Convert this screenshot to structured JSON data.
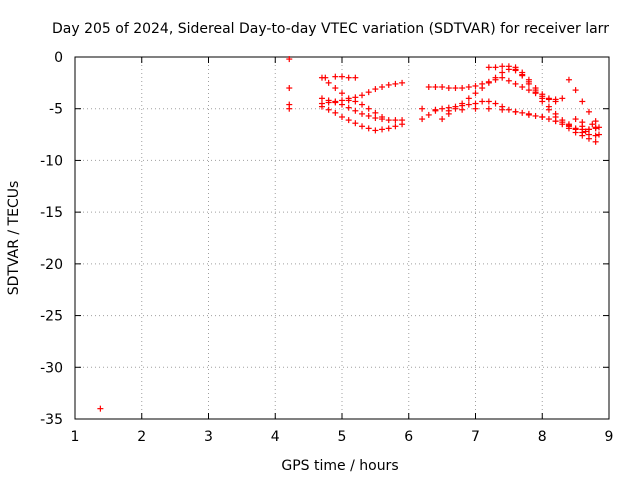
{
  "chart_data": {
    "type": "scatter",
    "title": "Day 205 of 2024, Sidereal Day-to-day VTEC variation (SDTVAR) for receiver larr",
    "xlabel": "GPS time / hours",
    "ylabel": "SDTVAR / TECUs",
    "xlim": [
      1,
      9
    ],
    "ylim": [
      -35,
      0
    ],
    "xticks": [
      1,
      2,
      3,
      4,
      5,
      6,
      7,
      8,
      9
    ],
    "yticks": [
      0,
      -5,
      -10,
      -15,
      -20,
      -25,
      -30,
      -35
    ],
    "grid": true,
    "marker": "+",
    "color": "#ff0000",
    "series": [
      {
        "points": [
          [
            1.38,
            -34.0
          ],
          [
            4.21,
            -0.2
          ],
          [
            4.21,
            -3.0
          ],
          [
            4.21,
            -4.6
          ],
          [
            4.21,
            -5.0
          ],
          [
            4.7,
            -2.0
          ],
          [
            4.8,
            -2.5
          ],
          [
            4.9,
            -3.0
          ],
          [
            5.0,
            -3.5
          ],
          [
            5.1,
            -4.0
          ],
          [
            5.2,
            -3.9
          ],
          [
            5.3,
            -3.7
          ],
          [
            5.4,
            -3.4
          ],
          [
            5.5,
            -3.1
          ],
          [
            5.6,
            -2.9
          ],
          [
            5.7,
            -2.7
          ],
          [
            5.8,
            -2.6
          ],
          [
            5.9,
            -2.5
          ],
          [
            4.75,
            -2.0
          ],
          [
            4.9,
            -1.9
          ],
          [
            5.0,
            -1.9
          ],
          [
            5.1,
            -2.0
          ],
          [
            5.2,
            -2.0
          ],
          [
            4.7,
            -4.0
          ],
          [
            4.8,
            -4.2
          ],
          [
            4.9,
            -4.4
          ],
          [
            5.0,
            -4.6
          ],
          [
            5.1,
            -4.9
          ],
          [
            5.2,
            -5.2
          ],
          [
            5.3,
            -5.5
          ],
          [
            5.4,
            -5.7
          ],
          [
            5.5,
            -5.9
          ],
          [
            5.6,
            -6.0
          ],
          [
            5.7,
            -6.1
          ],
          [
            5.8,
            -6.1
          ],
          [
            5.9,
            -6.1
          ],
          [
            4.7,
            -4.8
          ],
          [
            4.8,
            -5.1
          ],
          [
            4.9,
            -5.4
          ],
          [
            5.0,
            -5.8
          ],
          [
            5.1,
            -6.1
          ],
          [
            5.2,
            -6.4
          ],
          [
            5.3,
            -6.7
          ],
          [
            5.4,
            -6.9
          ],
          [
            5.5,
            -7.1
          ],
          [
            5.6,
            -7.0
          ],
          [
            5.7,
            -6.9
          ],
          [
            5.8,
            -6.7
          ],
          [
            5.9,
            -6.5
          ],
          [
            4.7,
            -4.5
          ],
          [
            4.8,
            -4.4
          ],
          [
            4.9,
            -4.3
          ],
          [
            5.0,
            -4.2
          ],
          [
            5.1,
            -4.2
          ],
          [
            5.2,
            -4.3
          ],
          [
            5.3,
            -4.6
          ],
          [
            5.4,
            -5.0
          ],
          [
            5.5,
            -5.4
          ],
          [
            5.6,
            -5.8
          ],
          [
            6.2,
            -6.0
          ],
          [
            6.3,
            -5.6
          ],
          [
            6.4,
            -5.2
          ],
          [
            6.5,
            -5.0
          ],
          [
            6.6,
            -4.9
          ],
          [
            6.7,
            -4.8
          ],
          [
            6.8,
            -4.7
          ],
          [
            6.9,
            -4.6
          ],
          [
            7.0,
            -4.5
          ],
          [
            7.1,
            -4.3
          ],
          [
            7.2,
            -4.3
          ],
          [
            7.3,
            -4.5
          ],
          [
            7.4,
            -4.8
          ],
          [
            7.5,
            -5.1
          ],
          [
            7.6,
            -5.3
          ],
          [
            7.7,
            -5.4
          ],
          [
            7.8,
            -5.6
          ],
          [
            7.9,
            -5.7
          ],
          [
            8.0,
            -5.8
          ],
          [
            8.1,
            -6.0
          ],
          [
            8.2,
            -6.2
          ],
          [
            8.3,
            -6.5
          ],
          [
            8.4,
            -6.9
          ],
          [
            8.5,
            -7.3
          ],
          [
            8.6,
            -7.6
          ],
          [
            8.7,
            -7.9
          ],
          [
            8.8,
            -8.2
          ],
          [
            6.2,
            -5.0
          ],
          [
            6.4,
            -5.1
          ],
          [
            6.6,
            -5.2
          ],
          [
            6.8,
            -5.1
          ],
          [
            7.0,
            -5.0
          ],
          [
            7.2,
            -5.0
          ],
          [
            7.4,
            -5.1
          ],
          [
            7.6,
            -5.3
          ],
          [
            7.8,
            -5.5
          ],
          [
            8.0,
            -5.8
          ],
          [
            8.2,
            -6.2
          ],
          [
            8.4,
            -6.5
          ],
          [
            8.6,
            -6.7
          ],
          [
            8.8,
            -6.8
          ],
          [
            6.3,
            -2.9
          ],
          [
            6.4,
            -2.9
          ],
          [
            6.5,
            -2.9
          ],
          [
            6.6,
            -3.0
          ],
          [
            6.7,
            -3.0
          ],
          [
            6.8,
            -3.0
          ],
          [
            6.9,
            -2.9
          ],
          [
            7.0,
            -2.8
          ],
          [
            7.1,
            -2.6
          ],
          [
            7.2,
            -2.4
          ],
          [
            7.3,
            -2.2
          ],
          [
            7.4,
            -2.0
          ],
          [
            7.5,
            -2.3
          ],
          [
            7.6,
            -2.6
          ],
          [
            7.7,
            -2.9
          ],
          [
            7.8,
            -3.2
          ],
          [
            7.9,
            -3.5
          ],
          [
            8.0,
            -3.8
          ],
          [
            8.1,
            -4.0
          ],
          [
            8.2,
            -4.1
          ],
          [
            8.3,
            -4.0
          ],
          [
            6.5,
            -6.0
          ],
          [
            6.6,
            -5.5
          ],
          [
            6.7,
            -5.0
          ],
          [
            6.8,
            -4.5
          ],
          [
            6.9,
            -4.0
          ],
          [
            7.0,
            -3.5
          ],
          [
            7.1,
            -3.0
          ],
          [
            7.2,
            -2.5
          ],
          [
            7.3,
            -2.0
          ],
          [
            7.4,
            -1.5
          ],
          [
            7.5,
            -1.2
          ],
          [
            7.6,
            -1.3
          ],
          [
            7.7,
            -1.7
          ],
          [
            7.8,
            -2.4
          ],
          [
            7.9,
            -3.2
          ],
          [
            8.0,
            -4.0
          ],
          [
            8.1,
            -4.8
          ],
          [
            8.2,
            -5.5
          ],
          [
            8.3,
            -6.1
          ],
          [
            8.4,
            -6.6
          ],
          [
            8.5,
            -7.0
          ],
          [
            8.6,
            -7.3
          ],
          [
            8.7,
            -7.5
          ],
          [
            8.8,
            -7.6
          ],
          [
            7.2,
            -1.0
          ],
          [
            7.3,
            -1.0
          ],
          [
            7.4,
            -0.9
          ],
          [
            7.5,
            -0.9
          ],
          [
            7.6,
            -1.0
          ],
          [
            7.7,
            -1.5
          ],
          [
            7.8,
            -2.2
          ],
          [
            7.9,
            -3.0
          ],
          [
            8.0,
            -3.6
          ],
          [
            8.1,
            -4.1
          ],
          [
            8.2,
            -4.3
          ],
          [
            7.6,
            -1.2
          ],
          [
            7.7,
            -1.8
          ],
          [
            7.8,
            -2.6
          ],
          [
            7.9,
            -3.4
          ],
          [
            8.0,
            -4.3
          ],
          [
            8.1,
            -5.1
          ],
          [
            8.2,
            -5.8
          ],
          [
            8.3,
            -6.3
          ],
          [
            8.4,
            -6.7
          ],
          [
            8.5,
            -6.9
          ],
          [
            8.6,
            -7.0
          ],
          [
            8.7,
            -7.0
          ],
          [
            8.8,
            -6.9
          ],
          [
            8.4,
            -2.2
          ],
          [
            8.5,
            -3.2
          ],
          [
            8.6,
            -4.3
          ],
          [
            8.7,
            -5.3
          ],
          [
            8.8,
            -6.2
          ],
          [
            8.85,
            -6.8
          ],
          [
            8.85,
            -7.5
          ],
          [
            8.75,
            -6.5
          ],
          [
            8.7,
            -7.0
          ],
          [
            8.6,
            -6.3
          ],
          [
            8.65,
            -7.2
          ],
          [
            8.5,
            -6.0
          ]
        ]
      }
    ]
  }
}
